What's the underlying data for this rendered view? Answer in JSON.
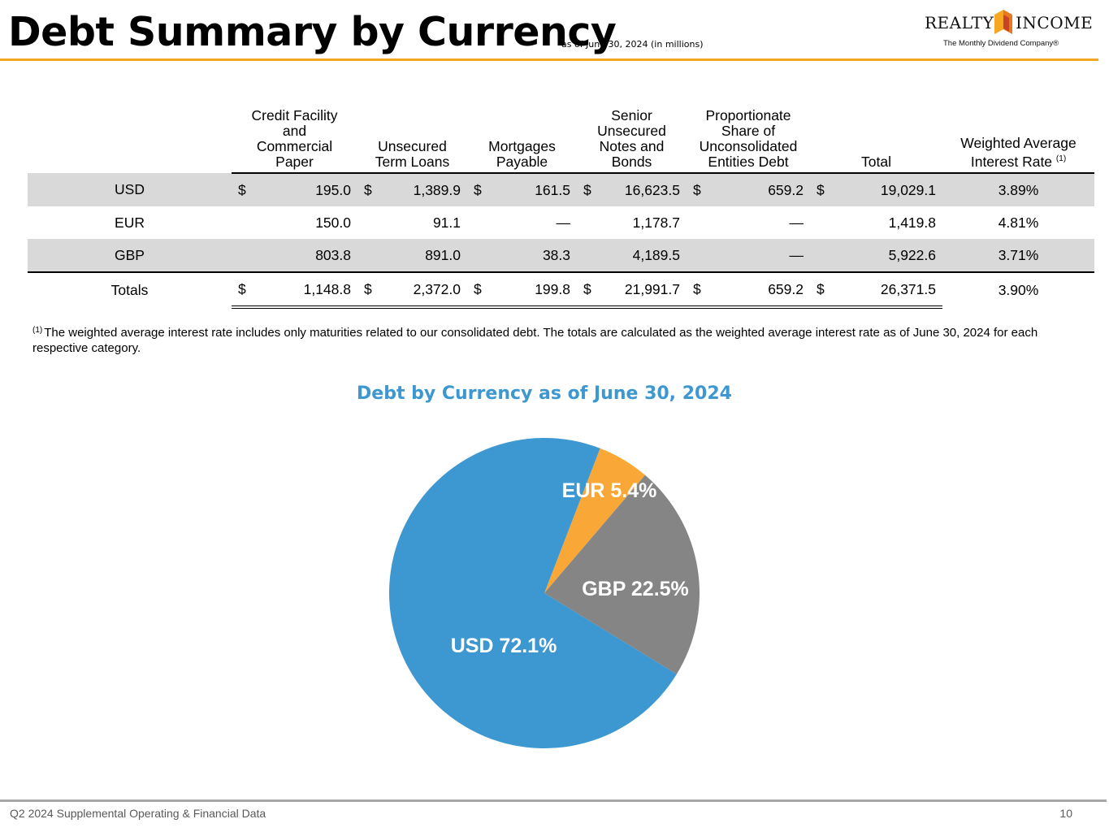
{
  "header": {
    "title": "Debt Summary by Currency",
    "subtitle": "as of June 30, 2024 (in millions)",
    "logo": {
      "left": "REALTY",
      "right": "INCOME",
      "tagline": "The Monthly Dividend Company®"
    },
    "accent_color": "#f5a623"
  },
  "table": {
    "columns": [
      "",
      "Credit Facility and Commercial Paper",
      "Unsecured Term Loans",
      "Mortgages Payable",
      "Senior Unsecured Notes and Bonds",
      "Proportionate Share of Unconsolidated Entities Debt",
      "Total",
      "Weighted Average Interest Rate"
    ],
    "rate_footnote_marker": "(1)",
    "rows": [
      {
        "currency": "USD",
        "symbols": [
          "$",
          "$",
          "$",
          "$",
          "$",
          "$"
        ],
        "values": [
          "195.0",
          "1,389.9",
          "161.5",
          "16,623.5",
          "659.2",
          "19,029.1"
        ],
        "rate": "3.89%"
      },
      {
        "currency": "EUR",
        "symbols": [
          "",
          "",
          "",
          "",
          "",
          ""
        ],
        "values": [
          "150.0",
          "91.1",
          "—",
          "1,178.7",
          "—",
          "1,419.8"
        ],
        "rate": "4.81%"
      },
      {
        "currency": "GBP",
        "symbols": [
          "",
          "",
          "",
          "",
          "",
          ""
        ],
        "values": [
          "803.8",
          "891.0",
          "38.3",
          "4,189.5",
          "—",
          "5,922.6"
        ],
        "rate": "3.71%"
      }
    ],
    "totals": {
      "label": "Totals",
      "symbols": [
        "$",
        "$",
        "$",
        "$",
        "$",
        "$"
      ],
      "values": [
        "1,148.8",
        "2,372.0",
        "199.8",
        "21,991.7",
        "659.2",
        "26,371.5"
      ],
      "rate": "3.90%"
    }
  },
  "footnote": {
    "marker": "(1)",
    "text": "The weighted average interest rate includes only maturities related to our consolidated debt. The totals are calculated as the weighted average interest rate as of June 30, 2024 for each respective category."
  },
  "chart_data": {
    "type": "pie",
    "title": "Debt by Currency as of June 30, 2024",
    "slices": [
      {
        "label": "EUR",
        "value": 5.4,
        "display": "EUR 5.4%",
        "color": "#f9a837"
      },
      {
        "label": "GBP",
        "value": 22.5,
        "display": "GBP 22.5%",
        "color": "#858585"
      },
      {
        "label": "USD",
        "value": 72.1,
        "display": "USD 72.1%",
        "color": "#3d97d1"
      }
    ],
    "label_color": "#ffffff",
    "title_color": "#3d97d1"
  },
  "footer": {
    "left": "Q2 2024 Supplemental Operating & Financial Data",
    "page": "10"
  }
}
